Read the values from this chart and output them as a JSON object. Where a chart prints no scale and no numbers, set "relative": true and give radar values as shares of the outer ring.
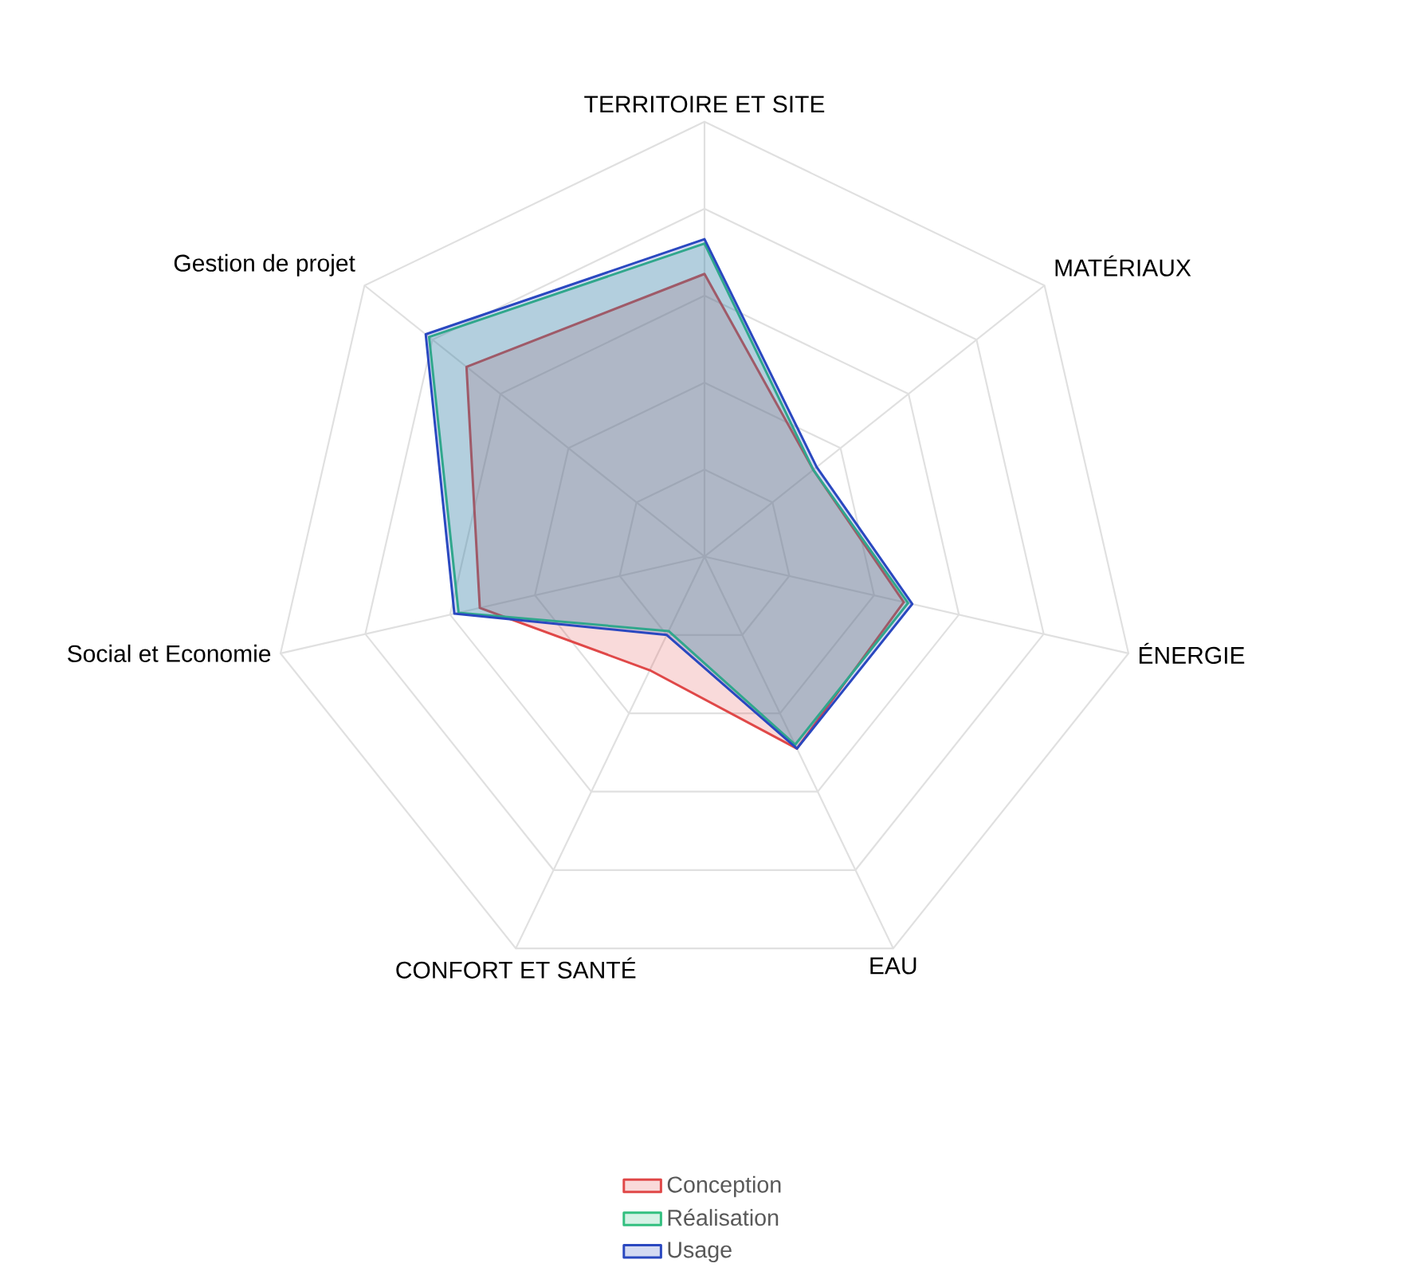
{
  "chart_data": {
    "type": "radar",
    "relative": true,
    "grid": true,
    "legend": "bottom",
    "categories": [
      "TERRITOIRE ET SITE",
      "MATÉRIAUX",
      "ÉNERGIE",
      "EAU",
      "CONFORT ET SANTÉ",
      "Social et Economie",
      "Gestion de projet"
    ],
    "series": [
      {
        "name": "Conception",
        "color": "#e04848",
        "values": [
          0.65,
          0.32,
          0.47,
          0.49,
          0.29,
          0.53,
          0.7
        ]
      },
      {
        "name": "Réalisation",
        "color": "#33c080",
        "values": [
          0.72,
          0.32,
          0.48,
          0.48,
          0.19,
          0.58,
          0.81
        ]
      },
      {
        "name": "Usage",
        "color": "#2a48c0",
        "values": [
          0.73,
          0.33,
          0.49,
          0.49,
          0.2,
          0.59,
          0.82
        ]
      }
    ]
  }
}
